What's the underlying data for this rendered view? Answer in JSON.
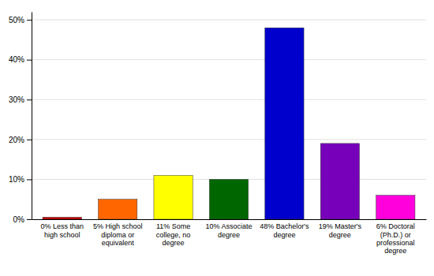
{
  "chart_data": {
    "type": "bar",
    "categories": [
      "0% Less than\nhigh school",
      "5% High school\ndiploma or\nequivalent",
      "11% Some\ncollege, no\ndegree",
      "10% Associate\ndegree",
      "48% Bachelor's\ndegree",
      "19% Master's\ndegree",
      "6% Doctoral\n(Ph.D.) or\nprofessional\ndegree"
    ],
    "values": [
      0.5,
      5,
      11,
      10,
      48,
      19,
      6
    ],
    "colors": [
      "#cc0000",
      "#ff6600",
      "#ffff00",
      "#006600",
      "#0000cc",
      "#7700bb",
      "#ff00dd"
    ],
    "ylim": [
      0,
      52
    ],
    "yticks": [
      {
        "value": 0,
        "label": "0%"
      },
      {
        "value": 10,
        "label": "10%"
      },
      {
        "value": 20,
        "label": "20%"
      },
      {
        "value": 30,
        "label": "30%"
      },
      {
        "value": 40,
        "label": "40%"
      },
      {
        "value": 50,
        "label": "50%"
      }
    ],
    "grid": true
  }
}
